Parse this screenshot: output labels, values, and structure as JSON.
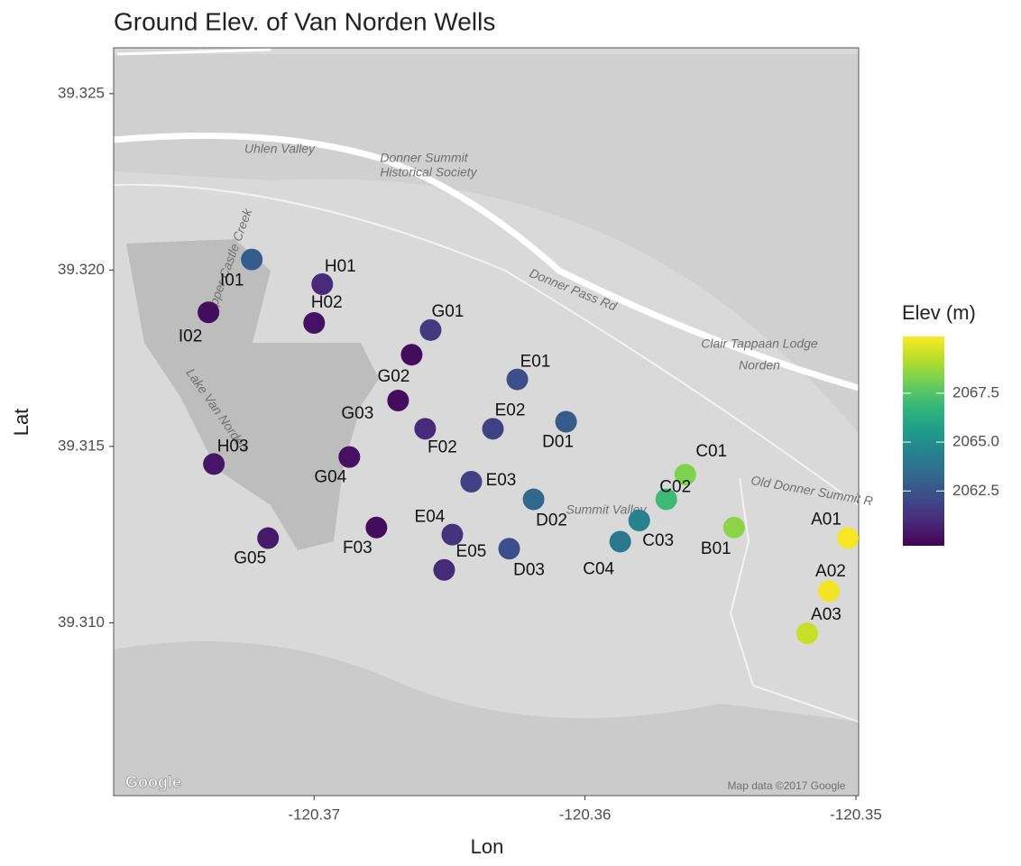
{
  "chart_data": {
    "type": "scatter",
    "title": "Ground Elev. of Van Norden Wells",
    "x_label": "Lon",
    "y_label": "Lat",
    "legend_title": "Elev (m)",
    "categories": [
      "I01",
      "H01",
      "I02",
      "H02",
      "G01",
      "G02",
      "E01",
      "G03",
      "F02",
      "E02",
      "D01",
      "H03",
      "G04",
      "C01",
      "E03",
      "C02",
      "D02",
      "C03",
      "B01",
      "F03",
      "G05",
      "E04",
      "A01",
      "C04",
      "D03",
      "E05",
      "A02",
      "A03"
    ],
    "x": [
      -120.3723,
      -120.3697,
      -120.3739,
      -120.37,
      -120.3657,
      -120.3664,
      -120.3625,
      -120.3669,
      -120.3659,
      -120.3634,
      -120.3607,
      -120.3737,
      -120.3687,
      -120.3563,
      -120.3642,
      -120.357,
      -120.3619,
      -120.358,
      -120.3545,
      -120.3677,
      -120.3717,
      -120.3649,
      -120.3503,
      -120.3587,
      -120.3628,
      -120.3652,
      -120.351,
      -120.3518
    ],
    "y": [
      39.3203,
      39.3196,
      39.3188,
      39.3185,
      39.3183,
      39.3176,
      39.3169,
      39.3163,
      39.3155,
      39.3155,
      39.3157,
      39.3145,
      39.3147,
      39.3142,
      39.314,
      39.3135,
      39.3135,
      39.3129,
      39.3127,
      39.3127,
      39.3124,
      39.3125,
      39.3124,
      39.3123,
      39.3121,
      39.3115,
      39.3109,
      39.3097
    ],
    "values": [
      2062.8,
      2061.0,
      2060.0,
      2060.2,
      2061.5,
      2060.0,
      2062.3,
      2060.0,
      2061.0,
      2061.8,
      2062.8,
      2060.3,
      2060.2,
      2068.3,
      2061.8,
      2067.0,
      2063.3,
      2064.5,
      2068.5,
      2060.0,
      2060.5,
      2061.3,
      2070.3,
      2064.0,
      2062.3,
      2061.0,
      2070.2,
      2069.5
    ],
    "xlim": [
      -120.3774,
      -120.3499
    ],
    "ylim": [
      39.3051,
      39.3263
    ],
    "xticks": [
      -120.37,
      -120.36,
      -120.35
    ],
    "yticks": [
      39.325,
      {
        "value": 39.32,
        "label": "39.320"
      },
      39.315,
      {
        "value": 39.31,
        "label": "39.310"
      }
    ],
    "clim": [
      2059.7,
      2070.4
    ],
    "cticks": [
      2062.5,
      {
        "value": 2065,
        "label": "2065.0"
      },
      2067.5
    ],
    "colorscale": [
      "#440154",
      "#482878",
      "#3e4989",
      "#31688e",
      "#26828e",
      "#1f9e89",
      "#35b779",
      "#6ece58",
      "#b5de2b",
      "#fde725"
    ],
    "map_labels": [
      "Uhlen Valley",
      "Donner Summit",
      "Historical Society",
      "Donner Pass Rd",
      "Clair Tappaan Lodge",
      "Norden",
      "Summit Valley",
      "Old Donner Summit R",
      "Lake Van Norden",
      "Upper Castle Creek",
      "Google",
      "Map data ©2017 Google"
    ]
  }
}
